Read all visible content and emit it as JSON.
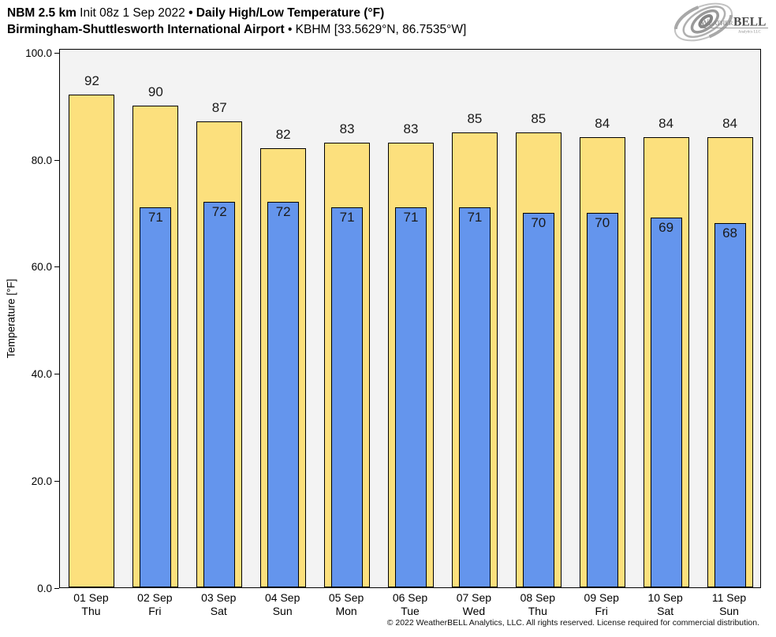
{
  "header": {
    "line1": [
      {
        "text": "NBM 2.5 km",
        "bold": true
      },
      {
        "text": " Init 08z 1 Sep 2022 ",
        "bold": false
      },
      {
        "text": "• Daily High/Low Temperature (°F)",
        "bold": true
      }
    ],
    "line2": [
      {
        "text": "Birmingham-Shuttlesworth International Airport",
        "bold": true
      },
      {
        "text": " • KBHM [33.5629°N, 86.7535°W]",
        "bold": false
      }
    ]
  },
  "logo": {
    "word1": "Weather",
    "word2": "BELL",
    "sub": "Analytics LLC"
  },
  "chart_data": {
    "type": "bar",
    "title": "Daily High/Low Temperature (°F)",
    "subtitle": "NBM 2.5 km Init 08z 1 Sep 2022 — Birmingham-Shuttlesworth International Airport (KBHM)",
    "ylabel": "Temperature [°F]",
    "xlabel": "",
    "ylim": [
      0,
      100
    ],
    "yticks": [
      0,
      20,
      40,
      60,
      80,
      100
    ],
    "ytick_labels": [
      "0.0",
      "20.0",
      "40.0",
      "60.0",
      "80.0",
      "100.0"
    ],
    "grid": false,
    "legend": false,
    "plot_bg": "#f3f3f3",
    "bar_border": "#000000",
    "value_labels_shown": true,
    "categories": [
      {
        "date": "01 Sep",
        "day": "Thu"
      },
      {
        "date": "02 Sep",
        "day": "Fri"
      },
      {
        "date": "03 Sep",
        "day": "Sat"
      },
      {
        "date": "04 Sep",
        "day": "Sun"
      },
      {
        "date": "05 Sep",
        "day": "Mon"
      },
      {
        "date": "06 Sep",
        "day": "Tue"
      },
      {
        "date": "07 Sep",
        "day": "Wed"
      },
      {
        "date": "08 Sep",
        "day": "Thu"
      },
      {
        "date": "09 Sep",
        "day": "Fri"
      },
      {
        "date": "10 Sep",
        "day": "Sat"
      },
      {
        "date": "11 Sep",
        "day": "Sun"
      }
    ],
    "series": [
      {
        "name": "High",
        "color": "#FCE07D",
        "values": [
          92,
          90,
          87,
          82,
          83,
          83,
          85,
          85,
          84,
          84,
          84
        ]
      },
      {
        "name": "Low",
        "color": "#6495ED",
        "values": [
          null,
          71,
          72,
          72,
          71,
          71,
          71,
          70,
          70,
          69,
          68
        ]
      }
    ]
  },
  "footer": {
    "copyright": "© 2022 WeatherBELL Analytics, LLC. All rights reserved. License required for commercial distribution."
  }
}
